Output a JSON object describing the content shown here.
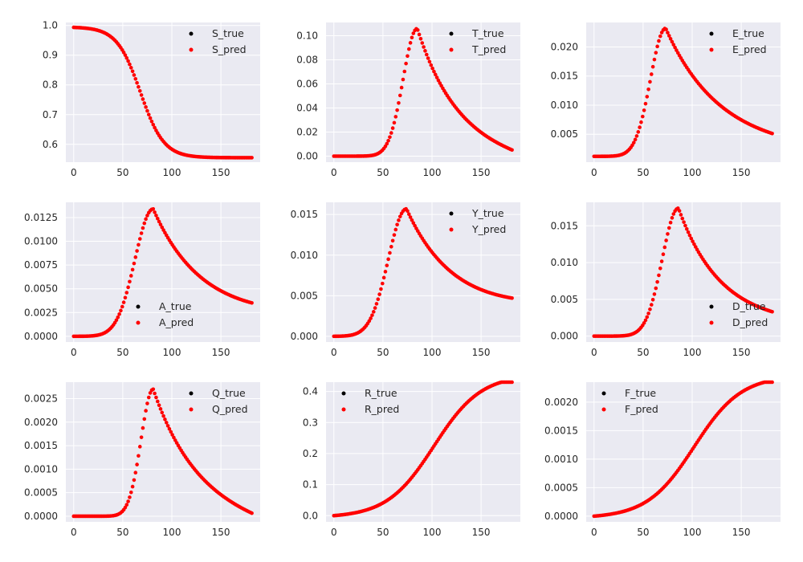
{
  "chart_data": [
    {
      "type": "scatter",
      "curve": "sigmoid_decay",
      "params": {
        "start": 0.995,
        "end": 0.555,
        "mid": 68,
        "width": 12,
        "tail_slope": 0.00028
      },
      "x_range": [
        0,
        182
      ],
      "ylim": [
        0.54,
        1.01
      ],
      "xticks": [
        0,
        50,
        100,
        150
      ],
      "yticks": [
        0.6,
        0.7,
        0.8,
        0.9,
        1.0
      ],
      "ytick_labels": [
        "0.6",
        "0.7",
        "0.8",
        "0.9",
        "1.0"
      ],
      "legend_position": "upper-right",
      "series": [
        {
          "name": "S_true",
          "color": "#000000"
        },
        {
          "name": "S_pred",
          "color": "#ff0000"
        }
      ]
    },
    {
      "type": "scatter",
      "curve": "peak",
      "params": {
        "base": 0.0,
        "peak": 0.106,
        "t_peak": 85,
        "rise_width": 14,
        "decay_rate": 0.0245,
        "end": 0.005
      },
      "x_range": [
        0,
        182
      ],
      "ylim": [
        -0.005,
        0.111
      ],
      "xticks": [
        0,
        50,
        100,
        150
      ],
      "yticks": [
        0.0,
        0.02,
        0.04,
        0.06,
        0.08,
        0.1
      ],
      "ytick_labels": [
        "0.00",
        "0.02",
        "0.04",
        "0.06",
        "0.08",
        "0.10"
      ],
      "legend_position": "upper-right",
      "series": [
        {
          "name": "T_true",
          "color": "#000000"
        },
        {
          "name": "T_pred",
          "color": "#ff0000"
        }
      ]
    },
    {
      "type": "scatter",
      "curve": "peak",
      "params": {
        "base": 0.0012,
        "peak": 0.0232,
        "t_peak": 73,
        "rise_width": 15,
        "decay_rate": 0.0185,
        "end": 0.0051
      },
      "x_range": [
        0,
        182
      ],
      "ylim": [
        0.0002,
        0.0242
      ],
      "xticks": [
        0,
        50,
        100,
        150
      ],
      "yticks": [
        0.005,
        0.01,
        0.015,
        0.02
      ],
      "ytick_labels": [
        "0.005",
        "0.010",
        "0.015",
        "0.020"
      ],
      "legend_position": "upper-right",
      "series": [
        {
          "name": "E_true",
          "color": "#000000"
        },
        {
          "name": "E_pred",
          "color": "#ff0000"
        }
      ]
    },
    {
      "type": "scatter",
      "curve": "peak",
      "params": {
        "base": 0.0,
        "peak": 0.0134,
        "t_peak": 81,
        "rise_width": 18,
        "decay_rate": 0.0205,
        "end": 0.0035
      },
      "x_range": [
        0,
        182
      ],
      "ylim": [
        -0.0006,
        0.0141
      ],
      "xticks": [
        0,
        50,
        100,
        150
      ],
      "yticks": [
        0.0,
        0.0025,
        0.005,
        0.0075,
        0.01,
        0.0125
      ],
      "ytick_labels": [
        "0.0000",
        "0.0025",
        "0.0050",
        "0.0075",
        "0.0100",
        "0.0125"
      ],
      "legend_position": "lower-center",
      "series": [
        {
          "name": "A_true",
          "color": "#000000"
        },
        {
          "name": "A_pred",
          "color": "#ff0000"
        }
      ]
    },
    {
      "type": "scatter",
      "curve": "peak",
      "params": {
        "base": 0.0,
        "peak": 0.0157,
        "t_peak": 74,
        "rise_width": 18,
        "decay_rate": 0.0205,
        "end": 0.0047
      },
      "x_range": [
        0,
        182
      ],
      "ylim": [
        -0.0007,
        0.0165
      ],
      "xticks": [
        0,
        50,
        100,
        150
      ],
      "yticks": [
        0.0,
        0.005,
        0.01,
        0.015
      ],
      "ytick_labels": [
        "0.000",
        "0.005",
        "0.010",
        "0.015"
      ],
      "legend_position": "upper-right",
      "series": [
        {
          "name": "Y_true",
          "color": "#000000"
        },
        {
          "name": "Y_pred",
          "color": "#ff0000"
        }
      ]
    },
    {
      "type": "scatter",
      "curve": "peak",
      "params": {
        "base": 0.0,
        "peak": 0.0174,
        "t_peak": 86,
        "rise_width": 16,
        "decay_rate": 0.0235,
        "end": 0.0033
      },
      "x_range": [
        0,
        182
      ],
      "ylim": [
        -0.0008,
        0.0182
      ],
      "xticks": [
        0,
        50,
        100,
        150
      ],
      "yticks": [
        0.0,
        0.005,
        0.01,
        0.015
      ],
      "ytick_labels": [
        "0.000",
        "0.005",
        "0.010",
        "0.015"
      ],
      "legend_position": "lower-right",
      "series": [
        {
          "name": "D_true",
          "color": "#000000"
        },
        {
          "name": "D_pred",
          "color": "#ff0000"
        }
      ]
    },
    {
      "type": "scatter",
      "curve": "peak",
      "params": {
        "base": 0.0,
        "peak": 0.0027,
        "t_peak": 81,
        "rise_width": 12,
        "decay_rate": 0.0225,
        "end": 6e-05
      },
      "x_range": [
        0,
        182
      ],
      "ylim": [
        -0.00012,
        0.00285
      ],
      "xticks": [
        0,
        50,
        100,
        150
      ],
      "yticks": [
        0.0,
        0.0005,
        0.001,
        0.0015,
        0.002,
        0.0025
      ],
      "ytick_labels": [
        "0.0000",
        "0.0005",
        "0.0010",
        "0.0015",
        "0.0020",
        "0.0025"
      ],
      "legend_position": "upper-right",
      "series": [
        {
          "name": "Q_true",
          "color": "#000000"
        },
        {
          "name": "Q_pred",
          "color": "#ff0000"
        }
      ]
    },
    {
      "type": "scatter",
      "curve": "sigmoid_rise",
      "params": {
        "start": 0.0,
        "end": 0.455,
        "mid": 102,
        "width": 24
      },
      "x_range": [
        0,
        182
      ],
      "ylim": [
        -0.02,
        0.43
      ],
      "xticks": [
        0,
        50,
        100,
        150
      ],
      "yticks": [
        0.0,
        0.1,
        0.2,
        0.3,
        0.4
      ],
      "ytick_labels": [
        "0.0",
        "0.1",
        "0.2",
        "0.3",
        "0.4"
      ],
      "legend_position": "upper-left",
      "series": [
        {
          "name": "R_true",
          "color": "#000000"
        },
        {
          "name": "R_pred",
          "color": "#ff0000"
        }
      ]
    },
    {
      "type": "scatter",
      "curve": "sigmoid_rise",
      "params": {
        "start": 0.0,
        "end": 0.00247,
        "mid": 102,
        "width": 24
      },
      "x_range": [
        0,
        182
      ],
      "ylim": [
        -0.0001,
        0.00235
      ],
      "xticks": [
        0,
        50,
        100,
        150
      ],
      "yticks": [
        0.0,
        0.0005,
        0.001,
        0.0015,
        0.002
      ],
      "ytick_labels": [
        "0.0000",
        "0.0005",
        "0.0010",
        "0.0015",
        "0.0020"
      ],
      "legend_position": "upper-left",
      "series": [
        {
          "name": "F_true",
          "color": "#000000"
        },
        {
          "name": "F_pred",
          "color": "#ff0000"
        }
      ]
    }
  ],
  "colors": {
    "axes_bg": "#eaeaf2",
    "grid": "#ffffff",
    "true": "#000000",
    "pred": "#ff0000"
  }
}
